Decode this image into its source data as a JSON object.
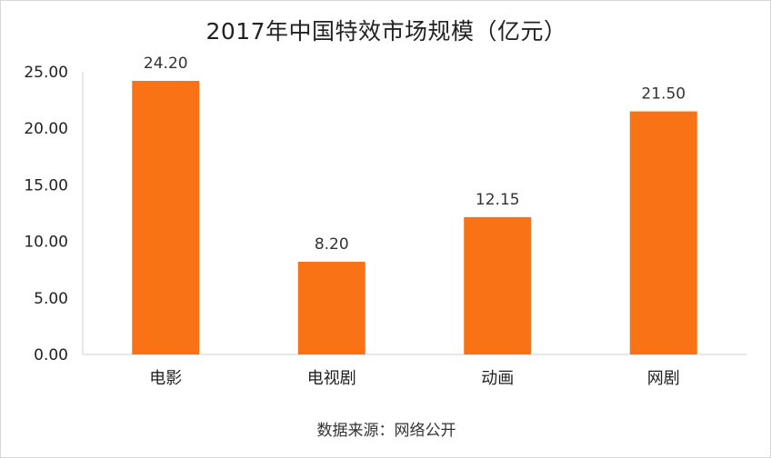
{
  "chart_data": {
    "type": "bar",
    "title": "2017年中国特效市场规模（亿元）",
    "categories": [
      "电影",
      "电视剧",
      "动画",
      "网剧"
    ],
    "values": [
      24.2,
      8.2,
      12.15,
      21.5
    ],
    "data_labels": [
      "24.20",
      "8.20",
      "12.15",
      "21.50"
    ],
    "ylim": [
      0,
      25
    ],
    "yticks": [
      "0.00",
      "5.00",
      "10.00",
      "15.00",
      "20.00",
      "25.00"
    ],
    "ytick_values": [
      0,
      5,
      10,
      15,
      20,
      25
    ],
    "grid": false,
    "legend": "none",
    "bar_color": "#F97316"
  },
  "source": "数据来源：网络公开"
}
